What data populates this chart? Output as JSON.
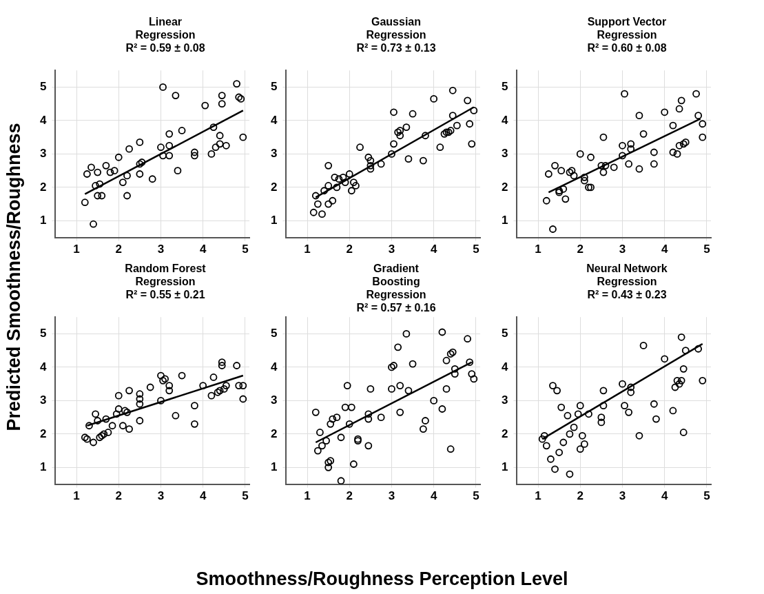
{
  "chart_data": [
    {
      "type": "scatter",
      "title": "Linear Regression",
      "subtitle": "R² = 0.59 ± 0.08",
      "ylabel": "Predicted Smoothness/Roughness",
      "xlim": [
        0.5,
        5.1
      ],
      "ylim": [
        0.5,
        5.5
      ],
      "xticks": [
        1,
        2,
        3,
        4,
        5
      ],
      "yticks": [
        1,
        2,
        3,
        4,
        5
      ],
      "grid": true,
      "series": [
        {
          "type": "scatter",
          "marker": "circle",
          "color": "#000000",
          "x": [
            1.2,
            1.25,
            1.35,
            1.4,
            1.45,
            1.5,
            1.5,
            1.55,
            1.6,
            1.7,
            1.8,
            1.9,
            2.0,
            2.1,
            2.2,
            2.2,
            2.25,
            2.5,
            2.55,
            2.5,
            2.5,
            2.8,
            3.0,
            3.05,
            3.05,
            3.2,
            3.2,
            3.2,
            3.35,
            3.4,
            3.5,
            3.8,
            3.8,
            4.05,
            4.2,
            4.25,
            4.3,
            4.4,
            4.4,
            4.45,
            4.45,
            4.55,
            4.8,
            4.85,
            4.9,
            4.95
          ],
          "values": [
            1.55,
            2.4,
            2.6,
            0.9,
            2.05,
            2.45,
            1.75,
            2.1,
            1.75,
            2.65,
            2.45,
            2.5,
            2.9,
            2.15,
            1.75,
            2.35,
            3.15,
            2.7,
            2.75,
            3.35,
            2.4,
            2.25,
            3.2,
            2.95,
            5.0,
            3.25,
            2.95,
            3.6,
            4.75,
            2.5,
            3.7,
            3.05,
            2.95,
            4.45,
            3.0,
            3.8,
            3.2,
            3.3,
            3.55,
            4.5,
            4.75,
            3.25,
            5.1,
            4.7,
            4.65,
            3.5
          ]
        },
        {
          "type": "line",
          "marker": "none",
          "color": "#000000",
          "x": [
            1.2,
            4.95
          ],
          "values": [
            1.8,
            4.3
          ]
        }
      ]
    },
    {
      "type": "scatter",
      "title": "Gaussian Regression",
      "subtitle": "R² = 0.73 ± 0.13",
      "xlim": [
        0.5,
        5.1
      ],
      "ylim": [
        0.5,
        5.5
      ],
      "xticks": [
        1,
        2,
        3,
        4,
        5
      ],
      "yticks": [
        1,
        2,
        3,
        4,
        5
      ],
      "grid": true,
      "series": [
        {
          "type": "scatter",
          "marker": "circle",
          "color": "#000000",
          "x": [
            1.15,
            1.2,
            1.25,
            1.35,
            1.4,
            1.5,
            1.5,
            1.5,
            1.6,
            1.65,
            1.7,
            1.75,
            1.85,
            1.9,
            2.0,
            2.05,
            2.1,
            2.15,
            2.25,
            2.45,
            2.5,
            2.5,
            2.5,
            2.75,
            3.0,
            3.05,
            3.05,
            3.15,
            3.2,
            3.2,
            3.35,
            3.4,
            3.5,
            3.75,
            3.8,
            4.0,
            4.15,
            4.25,
            4.3,
            4.35,
            4.4,
            4.45,
            4.45,
            4.55,
            4.8,
            4.85,
            4.9,
            4.95
          ],
          "values": [
            1.25,
            1.75,
            1.5,
            1.2,
            1.9,
            1.5,
            2.05,
            2.65,
            1.6,
            2.3,
            2.0,
            2.25,
            2.3,
            2.15,
            2.4,
            1.9,
            2.15,
            2.05,
            3.2,
            2.9,
            2.8,
            2.55,
            2.65,
            2.7,
            3.0,
            3.3,
            4.25,
            3.65,
            3.7,
            3.55,
            3.8,
            2.85,
            4.2,
            2.8,
            3.55,
            4.65,
            3.2,
            3.6,
            3.65,
            3.65,
            3.7,
            4.15,
            4.9,
            3.85,
            4.6,
            3.9,
            3.3,
            4.3
          ]
        },
        {
          "type": "line",
          "marker": "none",
          "color": "#000000",
          "x": [
            1.2,
            4.95
          ],
          "values": [
            1.7,
            4.4
          ]
        }
      ]
    },
    {
      "type": "scatter",
      "title": "Support Vector Regression",
      "subtitle": "R² = 0.60 ± 0.08",
      "xlim": [
        0.5,
        5.1
      ],
      "ylim": [
        0.5,
        5.5
      ],
      "xticks": [
        1,
        2,
        3,
        4,
        5
      ],
      "yticks": [
        1,
        2,
        3,
        4,
        5
      ],
      "grid": true,
      "series": [
        {
          "type": "scatter",
          "marker": "circle",
          "color": "#000000",
          "x": [
            1.2,
            1.25,
            1.35,
            1.4,
            1.5,
            1.5,
            1.55,
            1.6,
            1.65,
            1.75,
            1.8,
            1.85,
            2.0,
            2.1,
            2.1,
            2.2,
            2.25,
            2.25,
            2.5,
            2.55,
            2.55,
            2.6,
            2.8,
            3.0,
            3.0,
            3.05,
            3.15,
            3.2,
            3.2,
            3.4,
            3.4,
            3.5,
            3.75,
            3.75,
            4.0,
            4.2,
            4.2,
            4.3,
            4.35,
            4.35,
            4.4,
            4.45,
            4.5,
            4.75,
            4.8,
            4.9,
            4.9
          ],
          "values": [
            1.6,
            2.4,
            0.75,
            2.65,
            1.85,
            1.9,
            2.5,
            1.95,
            1.65,
            2.45,
            2.5,
            2.35,
            3.0,
            2.3,
            2.2,
            2.0,
            2.0,
            2.9,
            2.65,
            2.45,
            3.5,
            2.65,
            2.6,
            2.95,
            3.25,
            4.8,
            2.7,
            3.3,
            3.15,
            2.55,
            4.15,
            3.6,
            3.05,
            2.7,
            4.25,
            3.05,
            3.85,
            3.0,
            3.25,
            4.35,
            4.6,
            3.3,
            3.35,
            4.8,
            4.15,
            3.9,
            3.5
          ]
        },
        {
          "type": "line",
          "marker": "none",
          "color": "#000000",
          "x": [
            1.25,
            4.85
          ],
          "values": [
            1.85,
            4.05
          ]
        }
      ]
    },
    {
      "type": "scatter",
      "title": "Random Forest Regression",
      "subtitle": "R² = 0.55 ± 0.21",
      "xlim": [
        0.5,
        5.1
      ],
      "ylim": [
        0.5,
        5.5
      ],
      "xticks": [
        1,
        2,
        3,
        4,
        5
      ],
      "yticks": [
        1,
        2,
        3,
        4,
        5
      ],
      "grid": true,
      "series": [
        {
          "type": "scatter",
          "marker": "circle",
          "color": "#000000",
          "x": [
            1.2,
            1.25,
            1.3,
            1.4,
            1.45,
            1.5,
            1.55,
            1.6,
            1.65,
            1.7,
            1.75,
            1.85,
            1.95,
            2.0,
            2.0,
            2.1,
            2.15,
            2.2,
            2.25,
            2.25,
            2.5,
            2.5,
            2.5,
            2.5,
            2.75,
            3.0,
            3.0,
            3.05,
            3.1,
            3.2,
            3.2,
            3.35,
            3.5,
            3.8,
            3.8,
            4.0,
            4.2,
            4.25,
            4.35,
            4.4,
            4.45,
            4.45,
            4.5,
            4.55,
            4.8,
            4.85,
            4.95,
            4.95
          ],
          "values": [
            1.9,
            1.85,
            2.25,
            1.75,
            2.6,
            2.4,
            1.9,
            1.95,
            2.0,
            2.45,
            2.05,
            2.25,
            2.6,
            3.15,
            2.75,
            2.25,
            2.7,
            2.65,
            2.15,
            3.3,
            2.9,
            3.05,
            3.2,
            2.4,
            3.4,
            3.0,
            3.75,
            3.6,
            3.65,
            3.3,
            3.45,
            2.55,
            3.75,
            2.3,
            2.85,
            3.45,
            3.15,
            3.7,
            3.25,
            3.3,
            4.05,
            4.15,
            3.35,
            3.45,
            4.05,
            3.45,
            3.45,
            3.05
          ]
        },
        {
          "type": "line",
          "marker": "none",
          "color": "#000000",
          "x": [
            1.25,
            4.95
          ],
          "values": [
            2.25,
            3.75
          ]
        }
      ]
    },
    {
      "type": "scatter",
      "title": "Gradient Boosting Regression",
      "subtitle": "R² = 0.57 ± 0.16",
      "xlabel": "Smoothness/Roughness Perception Level",
      "xlim": [
        0.5,
        5.1
      ],
      "ylim": [
        0.5,
        5.5
      ],
      "xticks": [
        1,
        2,
        3,
        4,
        5
      ],
      "yticks": [
        1,
        2,
        3,
        4,
        5
      ],
      "grid": true,
      "series": [
        {
          "type": "scatter",
          "marker": "circle",
          "color": "#000000",
          "x": [
            1.2,
            1.25,
            1.3,
            1.35,
            1.45,
            1.5,
            1.5,
            1.55,
            1.55,
            1.6,
            1.7,
            1.8,
            1.8,
            1.9,
            1.95,
            2.0,
            2.05,
            2.1,
            2.2,
            2.2,
            2.45,
            2.45,
            2.45,
            2.5,
            2.75,
            3.0,
            3.0,
            3.05,
            3.15,
            3.2,
            3.2,
            3.35,
            3.4,
            3.5,
            3.75,
            3.8,
            4.0,
            4.2,
            4.2,
            4.3,
            4.3,
            4.4,
            4.4,
            4.45,
            4.5,
            4.5,
            4.8,
            4.85,
            4.9,
            4.95
          ],
          "values": [
            2.65,
            1.5,
            2.05,
            1.65,
            1.8,
            1.0,
            1.15,
            1.2,
            2.3,
            2.45,
            2.5,
            0.6,
            1.9,
            2.8,
            3.45,
            2.3,
            2.8,
            1.1,
            1.8,
            1.85,
            2.45,
            2.6,
            1.65,
            3.35,
            2.5,
            3.35,
            4.0,
            4.05,
            4.6,
            2.65,
            3.45,
            5.0,
            3.3,
            4.1,
            2.15,
            2.4,
            3.0,
            2.75,
            5.05,
            4.2,
            3.35,
            1.55,
            4.4,
            4.45,
            3.8,
            3.95,
            4.85,
            4.15,
            3.8,
            3.65
          ]
        },
        {
          "type": "line",
          "marker": "none",
          "color": "#000000",
          "x": [
            1.2,
            4.9
          ],
          "values": [
            1.75,
            4.15
          ]
        }
      ]
    },
    {
      "type": "scatter",
      "title": "Neural Network Regression",
      "subtitle": "R² = 0.43 ± 0.23",
      "xlim": [
        0.5,
        5.1
      ],
      "ylim": [
        0.5,
        5.5
      ],
      "xticks": [
        1,
        2,
        3,
        4,
        5
      ],
      "yticks": [
        1,
        2,
        3,
        4,
        5
      ],
      "grid": true,
      "series": [
        {
          "type": "scatter",
          "marker": "circle",
          "color": "#000000",
          "x": [
            1.1,
            1.15,
            1.2,
            1.3,
            1.35,
            1.4,
            1.45,
            1.5,
            1.55,
            1.6,
            1.7,
            1.75,
            1.75,
            1.85,
            1.95,
            2.0,
            2.0,
            2.05,
            2.1,
            2.2,
            2.5,
            2.5,
            2.55,
            2.55,
            3.0,
            3.05,
            3.15,
            3.2,
            3.2,
            3.4,
            3.5,
            3.75,
            3.8,
            4.0,
            4.2,
            4.25,
            4.3,
            4.35,
            4.4,
            4.4,
            4.45,
            4.45,
            4.5,
            4.8,
            4.9
          ],
          "values": [
            1.85,
            1.95,
            1.65,
            1.25,
            3.45,
            0.95,
            3.3,
            1.45,
            2.8,
            1.75,
            2.55,
            0.8,
            2.0,
            2.2,
            2.6,
            1.55,
            2.85,
            1.95,
            1.7,
            2.6,
            2.5,
            2.35,
            2.85,
            3.3,
            3.5,
            2.85,
            2.65,
            3.4,
            3.25,
            1.95,
            4.65,
            2.9,
            2.45,
            4.25,
            2.7,
            3.4,
            3.6,
            3.5,
            4.9,
            3.6,
            3.95,
            2.05,
            4.5,
            4.55,
            3.6
          ]
        },
        {
          "type": "line",
          "marker": "none",
          "color": "#000000",
          "x": [
            1.1,
            4.9
          ],
          "values": [
            1.85,
            4.7
          ]
        }
      ]
    }
  ]
}
